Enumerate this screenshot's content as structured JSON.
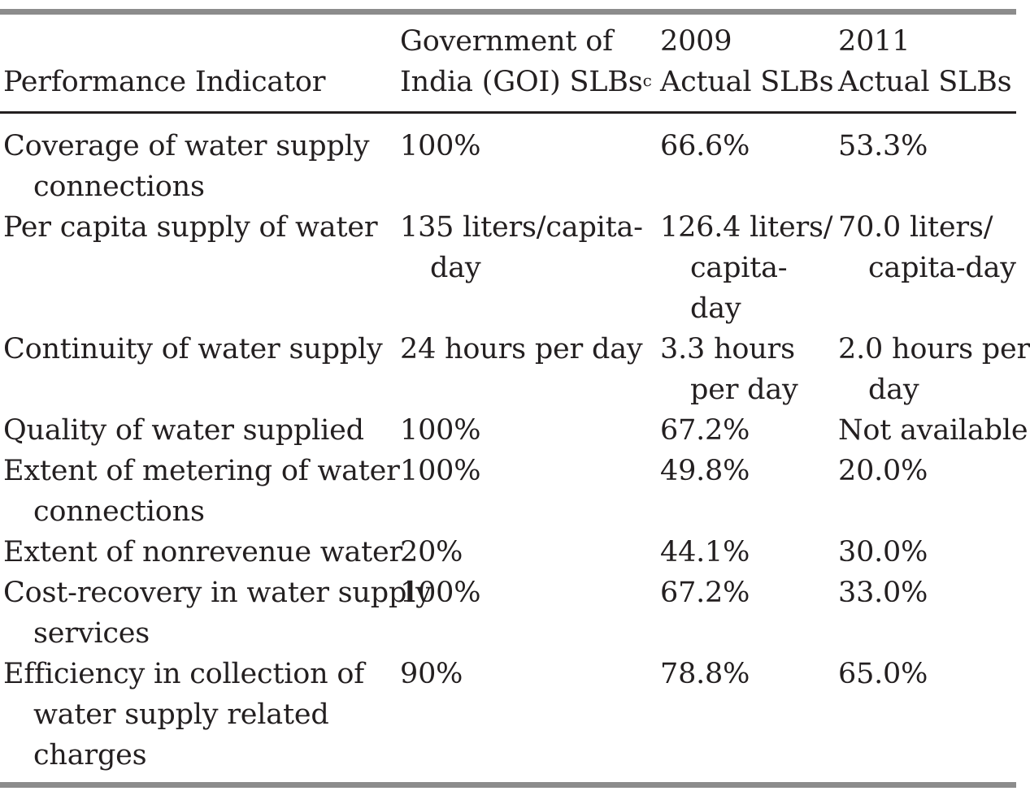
{
  "table": {
    "headers": {
      "indicator": "Performance Indicator",
      "goi_line1": "Government of",
      "goi_line2": "India (GOI) SLBs",
      "goi_sup": "c",
      "y2009_line1": "2009",
      "y2009_line2": "Actual SLBs",
      "y2011_line1": "2011",
      "y2011_line2": "Actual SLBs"
    },
    "rows": [
      {
        "indicator": [
          "Coverage of water supply",
          "connections"
        ],
        "goi": [
          "100%"
        ],
        "y2009": [
          "66.6%"
        ],
        "y2011": [
          "53.3%"
        ]
      },
      {
        "indicator": [
          "Per capita supply of water"
        ],
        "goi": [
          "135 liters/capita-",
          "day"
        ],
        "y2009": [
          "126.4 liters/",
          "capita-",
          "day"
        ],
        "y2011": [
          "70.0 liters/",
          "capita-day"
        ]
      },
      {
        "indicator": [
          "Continuity of water supply"
        ],
        "goi": [
          "24 hours per day"
        ],
        "y2009": [
          "3.3 hours",
          "per day"
        ],
        "y2011": [
          "2.0 hours per",
          "day"
        ]
      },
      {
        "indicator": [
          "Quality of water supplied"
        ],
        "goi": [
          "100%"
        ],
        "y2009": [
          "67.2%"
        ],
        "y2011": [
          "Not available"
        ]
      },
      {
        "indicator": [
          "Extent of metering of water",
          "connections"
        ],
        "goi": [
          "100%"
        ],
        "y2009": [
          "49.8%"
        ],
        "y2011": [
          "20.0%"
        ]
      },
      {
        "indicator": [
          "Extent of nonrevenue water"
        ],
        "goi": [
          "20%"
        ],
        "y2009": [
          "44.1%"
        ],
        "y2011": [
          "30.0%"
        ]
      },
      {
        "indicator": [
          "Cost-recovery in water supply",
          "services"
        ],
        "goi": [
          "100%"
        ],
        "y2009": [
          "67.2%"
        ],
        "y2011": [
          "33.0%"
        ]
      },
      {
        "indicator": [
          "Efficiency in collection of",
          "water supply related",
          "charges"
        ],
        "goi": [
          "90%"
        ],
        "y2009": [
          "78.8%"
        ],
        "y2011": [
          "65.0%"
        ]
      }
    ]
  }
}
